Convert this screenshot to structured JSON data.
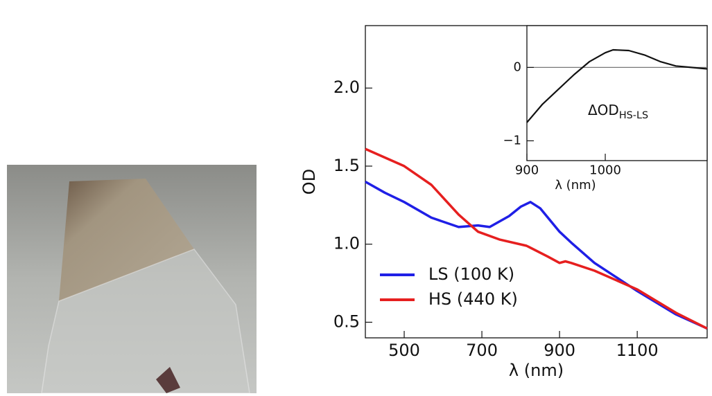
{
  "chart_data": [
    {
      "type": "line",
      "xlabel": "λ (nm)",
      "ylabel": "OD",
      "xlim": [
        400,
        1280
      ],
      "ylim": [
        0.4,
        2.4
      ],
      "xticks": [
        500,
        700,
        900,
        1100
      ],
      "yticks": [
        {
          "value": 0.5,
          "label": "0.5"
        },
        {
          "value": 1.0,
          "label": "1.0"
        },
        {
          "value": 1.5,
          "label": "1.5"
        },
        {
          "value": 2.0,
          "label": "2.0"
        }
      ],
      "legend": "lower left",
      "series": [
        {
          "name": "LS (100 K)",
          "color": "#1f1fe6",
          "x": [
            400,
            450,
            500,
            570,
            640,
            690,
            720,
            770,
            800,
            825,
            850,
            900,
            930,
            990,
            1100,
            1200,
            1280
          ],
          "values": [
            1.4,
            1.33,
            1.27,
            1.17,
            1.11,
            1.12,
            1.11,
            1.18,
            1.24,
            1.27,
            1.23,
            1.08,
            1.01,
            0.88,
            0.7,
            0.55,
            0.46
          ]
        },
        {
          "name": "HS (440 K)",
          "color": "#e61f1f",
          "x": [
            400,
            500,
            570,
            640,
            690,
            745,
            815,
            870,
            900,
            915,
            930,
            990,
            1100,
            1200,
            1280
          ],
          "values": [
            1.61,
            1.5,
            1.38,
            1.19,
            1.08,
            1.03,
            0.99,
            0.92,
            0.88,
            0.89,
            0.88,
            0.83,
            0.71,
            0.56,
            0.46
          ]
        }
      ]
    },
    {
      "type": "line",
      "xlabel": "λ (nm)",
      "annotation": "ΔOD",
      "annotation_sub": "HS-LS",
      "xlim": [
        900,
        1130
      ],
      "ylim": [
        -1.27,
        0.57
      ],
      "xticks": [
        900,
        1000
      ],
      "yticks": [
        {
          "value": -1,
          "label": "−1"
        },
        0
      ],
      "series": [
        {
          "color": "#111111",
          "x": [
            900,
            920,
            940,
            960,
            980,
            1000,
            1010,
            1030,
            1050,
            1070,
            1090,
            1110,
            1130
          ],
          "values": [
            -0.75,
            -0.5,
            -0.3,
            -0.1,
            0.08,
            0.2,
            0.24,
            0.23,
            0.17,
            0.08,
            0.02,
            0.0,
            -0.02
          ]
        }
      ]
    }
  ]
}
